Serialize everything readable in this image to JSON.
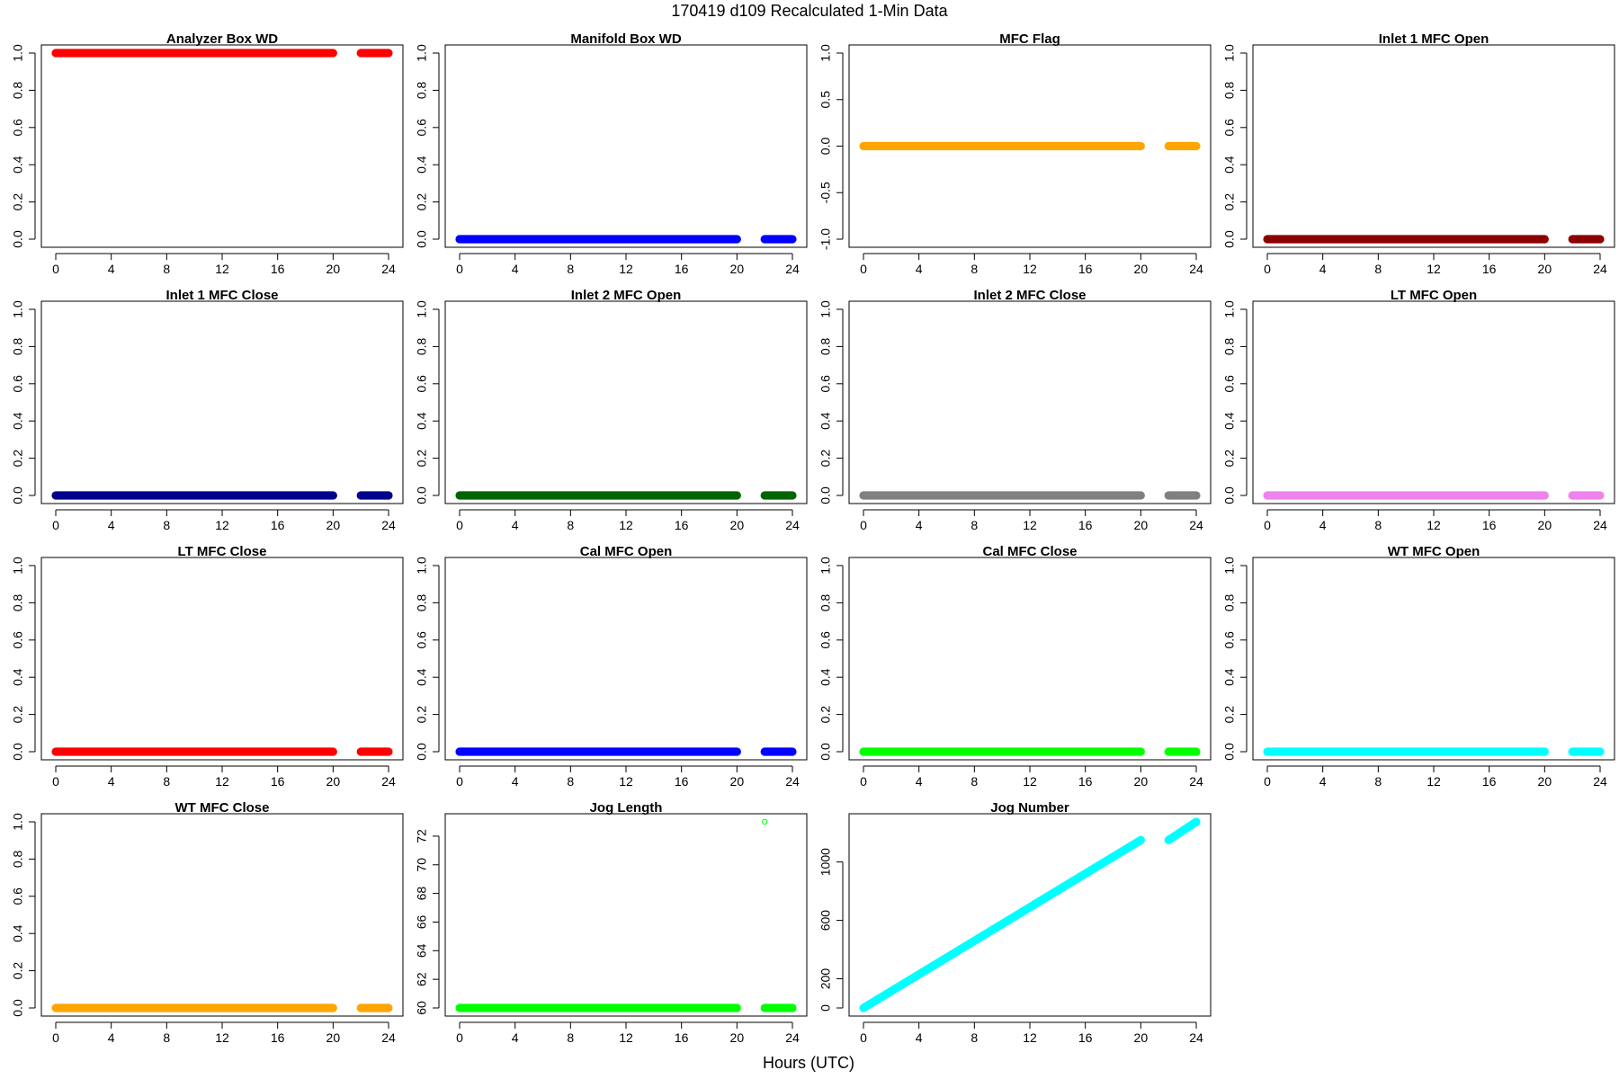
{
  "figure": {
    "title": "170419   d109   Recalculated 1-Min Data",
    "xlabel": "Hours (UTC)"
  },
  "chart_data": [
    {
      "type": "scatter",
      "title": "Analyzer Box WD",
      "color": "#ff0000",
      "xlim": [
        0,
        24
      ],
      "ylim": [
        0,
        1
      ],
      "xticks": [
        0,
        4,
        8,
        12,
        16,
        20,
        24
      ],
      "yticks": [
        0,
        0.2,
        0.4,
        0.6,
        0.8,
        1
      ],
      "ytick_labels": [
        "0.0",
        "0.2",
        "0.4",
        "0.6",
        "0.8",
        "1.0"
      ],
      "segments": [
        {
          "x": [
            0,
            20
          ],
          "y": [
            1,
            1
          ]
        },
        {
          "x": [
            22,
            24
          ],
          "y": [
            1,
            1
          ]
        }
      ]
    },
    {
      "type": "scatter",
      "title": "Manifold Box WD",
      "color": "#0000ff",
      "xlim": [
        0,
        24
      ],
      "ylim": [
        0,
        1
      ],
      "xticks": [
        0,
        4,
        8,
        12,
        16,
        20,
        24
      ],
      "yticks": [
        0,
        0.2,
        0.4,
        0.6,
        0.8,
        1
      ],
      "ytick_labels": [
        "0.0",
        "0.2",
        "0.4",
        "0.6",
        "0.8",
        "1.0"
      ],
      "segments": [
        {
          "x": [
            0,
            20
          ],
          "y": [
            0,
            0
          ]
        },
        {
          "x": [
            22,
            24
          ],
          "y": [
            0,
            0
          ]
        }
      ]
    },
    {
      "type": "scatter",
      "title": "MFC Flag",
      "color": "#ffa500",
      "xlim": [
        0,
        24
      ],
      "ylim": [
        -1,
        1
      ],
      "xticks": [
        0,
        4,
        8,
        12,
        16,
        20,
        24
      ],
      "yticks": [
        -1,
        -0.5,
        0,
        0.5,
        1
      ],
      "ytick_labels": [
        "-1.0",
        "-0.5",
        "0.0",
        "0.5",
        "1.0"
      ],
      "segments": [
        {
          "x": [
            0,
            20
          ],
          "y": [
            0,
            0
          ]
        },
        {
          "x": [
            22,
            24
          ],
          "y": [
            0,
            0
          ]
        }
      ]
    },
    {
      "type": "scatter",
      "title": "Inlet 1 MFC Open",
      "color": "#8b0000",
      "xlim": [
        0,
        24
      ],
      "ylim": [
        0,
        1
      ],
      "xticks": [
        0,
        4,
        8,
        12,
        16,
        20,
        24
      ],
      "yticks": [
        0,
        0.2,
        0.4,
        0.6,
        0.8,
        1
      ],
      "ytick_labels": [
        "0.0",
        "0.2",
        "0.4",
        "0.6",
        "0.8",
        "1.0"
      ],
      "segments": [
        {
          "x": [
            0,
            20
          ],
          "y": [
            0,
            0
          ]
        },
        {
          "x": [
            22,
            24
          ],
          "y": [
            0,
            0
          ]
        }
      ]
    },
    {
      "type": "scatter",
      "title": "Inlet 1 MFC Close",
      "color": "#00008b",
      "xlim": [
        0,
        24
      ],
      "ylim": [
        0,
        1
      ],
      "xticks": [
        0,
        4,
        8,
        12,
        16,
        20,
        24
      ],
      "yticks": [
        0,
        0.2,
        0.4,
        0.6,
        0.8,
        1
      ],
      "ytick_labels": [
        "0.0",
        "0.2",
        "0.4",
        "0.6",
        "0.8",
        "1.0"
      ],
      "segments": [
        {
          "x": [
            0,
            20
          ],
          "y": [
            0,
            0
          ]
        },
        {
          "x": [
            22,
            24
          ],
          "y": [
            0,
            0
          ]
        }
      ]
    },
    {
      "type": "scatter",
      "title": "Inlet 2 MFC Open",
      "color": "#006400",
      "xlim": [
        0,
        24
      ],
      "ylim": [
        0,
        1
      ],
      "xticks": [
        0,
        4,
        8,
        12,
        16,
        20,
        24
      ],
      "yticks": [
        0,
        0.2,
        0.4,
        0.6,
        0.8,
        1
      ],
      "ytick_labels": [
        "0.0",
        "0.2",
        "0.4",
        "0.6",
        "0.8",
        "1.0"
      ],
      "segments": [
        {
          "x": [
            0,
            20
          ],
          "y": [
            0,
            0
          ]
        },
        {
          "x": [
            22,
            24
          ],
          "y": [
            0,
            0
          ]
        }
      ]
    },
    {
      "type": "scatter",
      "title": "Inlet 2 MFC Close",
      "color": "#808080",
      "xlim": [
        0,
        24
      ],
      "ylim": [
        0,
        1
      ],
      "xticks": [
        0,
        4,
        8,
        12,
        16,
        20,
        24
      ],
      "yticks": [
        0,
        0.2,
        0.4,
        0.6,
        0.8,
        1
      ],
      "ytick_labels": [
        "0.0",
        "0.2",
        "0.4",
        "0.6",
        "0.8",
        "1.0"
      ],
      "segments": [
        {
          "x": [
            0,
            20
          ],
          "y": [
            0,
            0
          ]
        },
        {
          "x": [
            22,
            24
          ],
          "y": [
            0,
            0
          ]
        }
      ]
    },
    {
      "type": "scatter",
      "title": "LT MFC Open",
      "color": "#ee82ee",
      "xlim": [
        0,
        24
      ],
      "ylim": [
        0,
        1
      ],
      "xticks": [
        0,
        4,
        8,
        12,
        16,
        20,
        24
      ],
      "yticks": [
        0,
        0.2,
        0.4,
        0.6,
        0.8,
        1
      ],
      "ytick_labels": [
        "0.0",
        "0.2",
        "0.4",
        "0.6",
        "0.8",
        "1.0"
      ],
      "segments": [
        {
          "x": [
            0,
            20
          ],
          "y": [
            0,
            0
          ]
        },
        {
          "x": [
            22,
            24
          ],
          "y": [
            0,
            0
          ]
        }
      ]
    },
    {
      "type": "scatter",
      "title": "LT MFC Close",
      "color": "#ff0000",
      "xlim": [
        0,
        24
      ],
      "ylim": [
        0,
        1
      ],
      "xticks": [
        0,
        4,
        8,
        12,
        16,
        20,
        24
      ],
      "yticks": [
        0,
        0.2,
        0.4,
        0.6,
        0.8,
        1
      ],
      "ytick_labels": [
        "0.0",
        "0.2",
        "0.4",
        "0.6",
        "0.8",
        "1.0"
      ],
      "segments": [
        {
          "x": [
            0,
            20
          ],
          "y": [
            0,
            0
          ]
        },
        {
          "x": [
            22,
            24
          ],
          "y": [
            0,
            0
          ]
        }
      ]
    },
    {
      "type": "scatter",
      "title": "Cal MFC Open",
      "color": "#0000ff",
      "xlim": [
        0,
        24
      ],
      "ylim": [
        0,
        1
      ],
      "xticks": [
        0,
        4,
        8,
        12,
        16,
        20,
        24
      ],
      "yticks": [
        0,
        0.2,
        0.4,
        0.6,
        0.8,
        1
      ],
      "ytick_labels": [
        "0.0",
        "0.2",
        "0.4",
        "0.6",
        "0.8",
        "1.0"
      ],
      "segments": [
        {
          "x": [
            0,
            20
          ],
          "y": [
            0,
            0
          ]
        },
        {
          "x": [
            22,
            24
          ],
          "y": [
            0,
            0
          ]
        }
      ]
    },
    {
      "type": "scatter",
      "title": "Cal MFC Close",
      "color": "#00ff00",
      "xlim": [
        0,
        24
      ],
      "ylim": [
        0,
        1
      ],
      "xticks": [
        0,
        4,
        8,
        12,
        16,
        20,
        24
      ],
      "yticks": [
        0,
        0.2,
        0.4,
        0.6,
        0.8,
        1
      ],
      "ytick_labels": [
        "0.0",
        "0.2",
        "0.4",
        "0.6",
        "0.8",
        "1.0"
      ],
      "segments": [
        {
          "x": [
            0,
            20
          ],
          "y": [
            0,
            0
          ]
        },
        {
          "x": [
            22,
            24
          ],
          "y": [
            0,
            0
          ]
        }
      ]
    },
    {
      "type": "scatter",
      "title": "WT MFC Open",
      "color": "#00ffff",
      "xlim": [
        0,
        24
      ],
      "ylim": [
        0,
        1
      ],
      "xticks": [
        0,
        4,
        8,
        12,
        16,
        20,
        24
      ],
      "yticks": [
        0,
        0.2,
        0.4,
        0.6,
        0.8,
        1
      ],
      "ytick_labels": [
        "0.0",
        "0.2",
        "0.4",
        "0.6",
        "0.8",
        "1.0"
      ],
      "segments": [
        {
          "x": [
            0,
            20
          ],
          "y": [
            0,
            0
          ]
        },
        {
          "x": [
            22,
            24
          ],
          "y": [
            0,
            0
          ]
        }
      ]
    },
    {
      "type": "scatter",
      "title": "WT MFC Close",
      "color": "#ffa500",
      "xlim": [
        0,
        24
      ],
      "ylim": [
        0,
        1
      ],
      "xticks": [
        0,
        4,
        8,
        12,
        16,
        20,
        24
      ],
      "yticks": [
        0,
        0.2,
        0.4,
        0.6,
        0.8,
        1
      ],
      "ytick_labels": [
        "0.0",
        "0.2",
        "0.4",
        "0.6",
        "0.8",
        "1.0"
      ],
      "segments": [
        {
          "x": [
            0,
            20
          ],
          "y": [
            0,
            0
          ]
        },
        {
          "x": [
            22,
            24
          ],
          "y": [
            0,
            0
          ]
        }
      ]
    },
    {
      "type": "scatter",
      "title": "Jog Length",
      "color": "#00ff00",
      "xlim": [
        0,
        24
      ],
      "ylim": [
        60,
        73
      ],
      "xticks": [
        0,
        4,
        8,
        12,
        16,
        20,
        24
      ],
      "yticks": [
        60,
        62,
        64,
        66,
        68,
        70,
        72
      ],
      "ytick_labels": [
        "60",
        "62",
        "64",
        "66",
        "68",
        "70",
        "72"
      ],
      "segments": [
        {
          "x": [
            0,
            20
          ],
          "y": [
            60,
            60
          ]
        },
        {
          "x": [
            22,
            24
          ],
          "y": [
            60,
            60
          ]
        }
      ],
      "points": [
        {
          "x": 22,
          "y": 73
        }
      ]
    },
    {
      "type": "scatter",
      "title": "Jog Number",
      "color": "#00ffff",
      "xlim": [
        0,
        24
      ],
      "ylim": [
        0,
        1275
      ],
      "xticks": [
        0,
        4,
        8,
        12,
        16,
        20,
        24
      ],
      "yticks": [
        0,
        200,
        600,
        1000
      ],
      "ytick_labels": [
        "0",
        "200",
        "600",
        "1000"
      ],
      "segments": [
        {
          "x": [
            0,
            20
          ],
          "y": [
            0,
            1150
          ]
        },
        {
          "x": [
            22,
            24
          ],
          "y": [
            1150,
            1275
          ]
        }
      ]
    }
  ]
}
